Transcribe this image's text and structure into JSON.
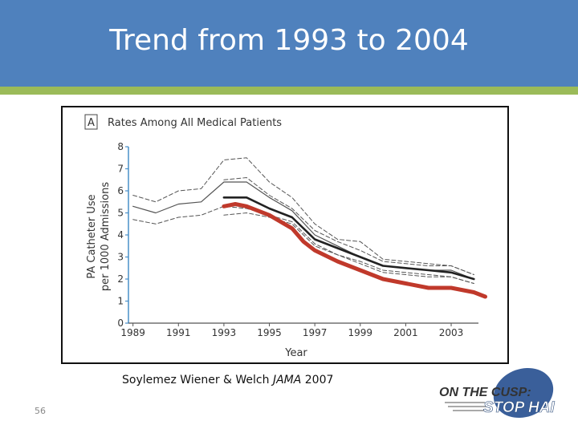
{
  "slide": {
    "title": "Trend from 1993 to 2004",
    "caption_authors": "Soylemez Wiener & Welch ",
    "caption_journal": "JAMA",
    "caption_year": " 2007",
    "slide_number": "56",
    "logo_line1": "ON THE CUSP:",
    "logo_line2": "STOP HAI"
  },
  "colors": {
    "header": "#4f81bd",
    "stripe": "#9bbb59",
    "axis": "#4a90c8",
    "trend": "#c0392b"
  },
  "chart_data": {
    "type": "line",
    "panel_label": "A",
    "title": "Rates Among All Medical Patients",
    "xlabel": "Year",
    "ylabel_line1": "PA Catheter Use",
    "ylabel_line2": "per 1000 Admissions",
    "xlim": [
      1988.8,
      2004.2
    ],
    "ylim": [
      0,
      8
    ],
    "xticks": [
      1989,
      1991,
      1993,
      1995,
      1997,
      1999,
      2001,
      2003
    ],
    "yticks": [
      0,
      1,
      2,
      3,
      4,
      5,
      6,
      7,
      8
    ],
    "series": [
      {
        "style": "dashed",
        "points": [
          [
            1989,
            5.8
          ],
          [
            1990,
            5.5
          ],
          [
            1991,
            6.0
          ],
          [
            1992,
            6.1
          ],
          [
            1993,
            7.4
          ],
          [
            1994,
            7.5
          ],
          [
            1995,
            6.4
          ],
          [
            1996,
            5.7
          ],
          [
            1997,
            4.5
          ],
          [
            1998,
            3.8
          ],
          [
            1999,
            3.7
          ],
          [
            2000,
            2.9
          ],
          [
            2001,
            2.8
          ],
          [
            2002,
            2.7
          ],
          [
            2003,
            2.6
          ],
          [
            2004,
            2.2
          ]
        ]
      },
      {
        "style": "thin-solid",
        "points": [
          [
            1989,
            5.3
          ],
          [
            1990,
            5.0
          ],
          [
            1991,
            5.4
          ],
          [
            1992,
            5.5
          ],
          [
            1993,
            6.4
          ],
          [
            1994,
            6.4
          ],
          [
            1995,
            5.7
          ],
          [
            1996,
            5.1
          ],
          [
            1997,
            4.0
          ],
          [
            1998,
            3.5
          ],
          [
            1999,
            3.0
          ],
          [
            2000,
            2.6
          ],
          [
            2001,
            2.5
          ],
          [
            2002,
            2.4
          ],
          [
            2003,
            2.4
          ],
          [
            2004,
            2.0
          ]
        ]
      },
      {
        "style": "dashed",
        "points": [
          [
            1989,
            4.7
          ],
          [
            1990,
            4.5
          ],
          [
            1991,
            4.8
          ],
          [
            1992,
            4.9
          ],
          [
            1993,
            5.3
          ],
          [
            1994,
            5.2
          ],
          [
            1995,
            4.9
          ],
          [
            1996,
            4.6
          ],
          [
            1997,
            3.6
          ],
          [
            1998,
            3.1
          ],
          [
            1999,
            2.7
          ],
          [
            2000,
            2.3
          ],
          [
            2001,
            2.2
          ],
          [
            2002,
            2.1
          ],
          [
            2003,
            2.1
          ],
          [
            2004,
            1.8
          ]
        ]
      },
      {
        "style": "dashed",
        "points": [
          [
            1993,
            6.5
          ],
          [
            1994,
            6.6
          ],
          [
            1995,
            5.8
          ],
          [
            1996,
            5.2
          ],
          [
            1997,
            4.2
          ],
          [
            1998,
            3.7
          ],
          [
            1999,
            3.3
          ],
          [
            2000,
            2.8
          ],
          [
            2001,
            2.7
          ],
          [
            2002,
            2.6
          ],
          [
            2003,
            2.6
          ],
          [
            2004,
            2.2
          ]
        ]
      },
      {
        "style": "dashed",
        "points": [
          [
            1993,
            4.9
          ],
          [
            1994,
            5.0
          ],
          [
            1995,
            4.8
          ],
          [
            1996,
            4.5
          ],
          [
            1997,
            3.5
          ],
          [
            1998,
            3.1
          ],
          [
            1999,
            2.8
          ],
          [
            2000,
            2.4
          ],
          [
            2001,
            2.3
          ],
          [
            2002,
            2.2
          ],
          [
            2003,
            2.1
          ],
          [
            2004,
            1.8
          ]
        ]
      },
      {
        "style": "thick-solid",
        "points": [
          [
            1993,
            5.7
          ],
          [
            1994,
            5.7
          ],
          [
            1995,
            5.2
          ],
          [
            1996,
            4.8
          ],
          [
            1997,
            3.8
          ],
          [
            1998,
            3.4
          ],
          [
            1999,
            3.0
          ],
          [
            2000,
            2.6
          ],
          [
            2001,
            2.5
          ],
          [
            2002,
            2.4
          ],
          [
            2003,
            2.3
          ],
          [
            2004,
            2.0
          ]
        ]
      },
      {
        "style": "trend",
        "points": [
          [
            1993,
            5.3
          ],
          [
            1993.5,
            5.4
          ],
          [
            1994,
            5.3
          ],
          [
            1995,
            4.9
          ],
          [
            1996,
            4.3
          ],
          [
            1996.5,
            3.7
          ],
          [
            1997,
            3.3
          ],
          [
            1998,
            2.8
          ],
          [
            1999,
            2.4
          ],
          [
            2000,
            2.0
          ],
          [
            2001,
            1.8
          ],
          [
            2002,
            1.6
          ],
          [
            2003,
            1.6
          ],
          [
            2004,
            1.4
          ],
          [
            2004.5,
            1.2
          ]
        ]
      }
    ]
  }
}
